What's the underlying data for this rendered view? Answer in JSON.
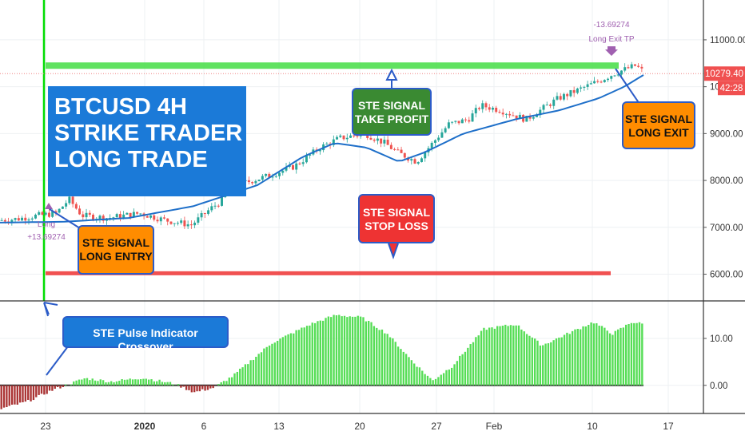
{
  "chart_data": [
    {
      "type": "candlestick",
      "title": "BTCUSD 4H\nSTRIKE TRADER\nLONG TRADE",
      "x_tick_labels": [
        "23",
        "2020",
        "6",
        "13",
        "20",
        "27",
        "Feb",
        "10",
        "17"
      ],
      "y_ticks": [
        6000,
        7000,
        8000,
        9000,
        10000,
        11000
      ],
      "y_tick_labels": [
        "6000.00",
        "7000.00",
        "8000.00",
        "9000.00",
        "10000.00",
        "11000.00"
      ],
      "ylim": [
        5430,
        11850
      ],
      "price_path": [
        [
          0,
          7150
        ],
        [
          0.03,
          7180
        ],
        [
          0.06,
          7250
        ],
        [
          0.09,
          7300
        ],
        [
          0.11,
          7600
        ],
        [
          0.13,
          7250
        ],
        [
          0.17,
          7200
        ],
        [
          0.22,
          7300
        ],
        [
          0.26,
          7150
        ],
        [
          0.3,
          7050
        ],
        [
          0.33,
          7400
        ],
        [
          0.35,
          7600
        ],
        [
          0.37,
          7900
        ],
        [
          0.42,
          8100
        ],
        [
          0.46,
          8300
        ],
        [
          0.5,
          8700
        ],
        [
          0.53,
          8900
        ],
        [
          0.57,
          9000
        ],
        [
          0.6,
          8800
        ],
        [
          0.62,
          8600
        ],
        [
          0.65,
          8400
        ],
        [
          0.7,
          9200
        ],
        [
          0.73,
          9300
        ],
        [
          0.75,
          9600
        ],
        [
          0.78,
          9500
        ],
        [
          0.82,
          9300
        ],
        [
          0.87,
          9750
        ],
        [
          0.93,
          10100
        ],
        [
          0.96,
          10300
        ],
        [
          0.99,
          10450
        ],
        [
          1.0,
          10350
        ]
      ],
      "moving_average": [
        [
          0,
          7100
        ],
        [
          0.1,
          7120
        ],
        [
          0.2,
          7200
        ],
        [
          0.3,
          7450
        ],
        [
          0.4,
          7900
        ],
        [
          0.47,
          8500
        ],
        [
          0.52,
          8800
        ],
        [
          0.57,
          8700
        ],
        [
          0.62,
          8400
        ],
        [
          0.66,
          8600
        ],
        [
          0.72,
          9000
        ],
        [
          0.8,
          9300
        ],
        [
          0.87,
          9500
        ],
        [
          0.93,
          9750
        ],
        [
          0.97,
          10000
        ],
        [
          1.0,
          10250
        ]
      ],
      "current_price_label": "10279.40",
      "countdown_label": "42:28",
      "take_profit_level": 10450,
      "stop_loss_level": 6020,
      "entry_marker": {
        "label": "Long",
        "value": "+13.69274"
      },
      "exit_marker": {
        "value": "-13.69274",
        "label": "Long Exit TP"
      },
      "colors": {
        "up": "#26a69a",
        "down": "#ef5350",
        "ma": "#1e6fc9",
        "take_profit": "#44dd44",
        "stop_loss": "#ee3333",
        "entry_line": "#00dd00",
        "price_tag": "#f05050",
        "marker_text": "#a060b0"
      }
    },
    {
      "type": "histogram",
      "name": "STE Pulse Indicator",
      "y_ticks": [
        0,
        10
      ],
      "y_tick_labels": [
        "0.00",
        "10.00"
      ],
      "ylim": [
        -6,
        18
      ],
      "path": [
        [
          0,
          -5
        ],
        [
          0.04,
          -3.5
        ],
        [
          0.08,
          -1
        ],
        [
          0.1,
          0
        ],
        [
          0.13,
          1.5
        ],
        [
          0.17,
          0.8
        ],
        [
          0.22,
          1.6
        ],
        [
          0.27,
          0.3
        ],
        [
          0.3,
          -1.5
        ],
        [
          0.33,
          -0.5
        ],
        [
          0.36,
          2
        ],
        [
          0.42,
          9
        ],
        [
          0.48,
          13
        ],
        [
          0.52,
          15
        ],
        [
          0.56,
          14.5
        ],
        [
          0.6,
          11
        ],
        [
          0.64,
          5
        ],
        [
          0.67,
          1
        ],
        [
          0.7,
          4
        ],
        [
          0.75,
          12
        ],
        [
          0.8,
          13
        ],
        [
          0.84,
          8.5
        ],
        [
          0.88,
          11
        ],
        [
          0.92,
          13.5
        ],
        [
          0.95,
          11
        ],
        [
          0.98,
          13.5
        ],
        [
          1.0,
          13
        ]
      ],
      "colors": {
        "positive": "#55dd55",
        "negative": "#aa3333",
        "zero_line": "#333333"
      }
    }
  ],
  "callouts": {
    "title_lines": "BTCUSD 4H\nSTRIKE TRADER\nLONG TRADE",
    "take_profit": "STE SIGNAL\nTAKE PROFIT",
    "long_exit": "STE SIGNAL\nLONG EXIT",
    "stop_loss": "STE SIGNAL\nSTOP LOSS",
    "long_entry": "STE SIGNAL\nLONG ENTRY",
    "pulse": "STE Pulse Indicator Crossover"
  }
}
